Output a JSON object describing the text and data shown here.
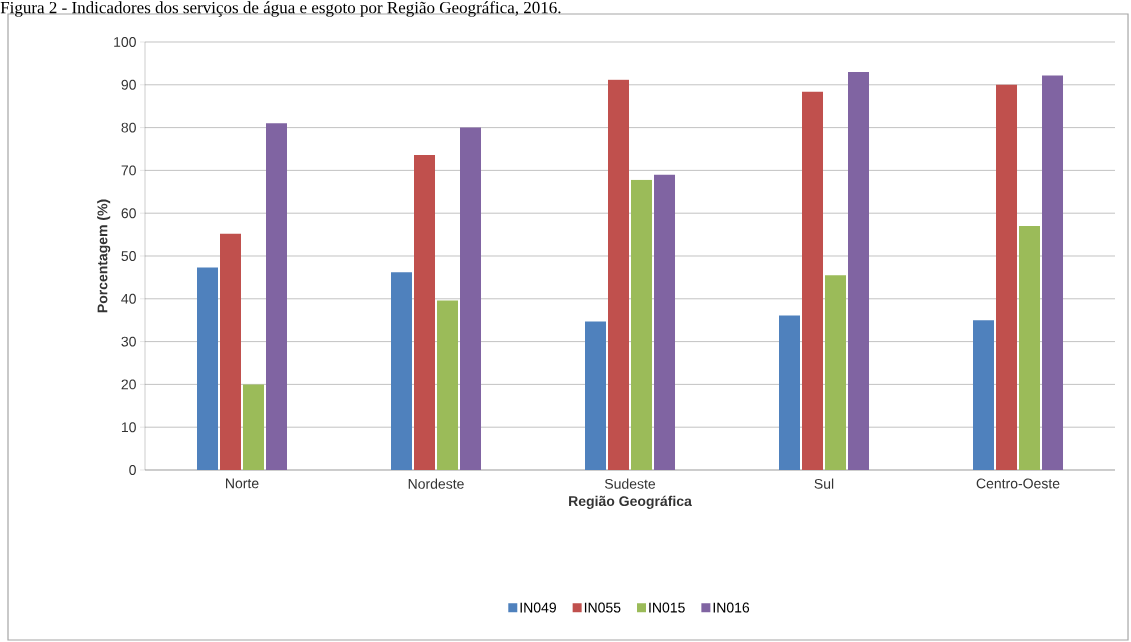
{
  "chart_data": {
    "type": "bar",
    "title": "Figura 2 - Indicadores dos serviços de água e esgoto por Região Geográfica, 2016.",
    "xlabel": "Região Geográfica",
    "ylabel": "Porcentagem (%)",
    "categories": [
      "Norte",
      "Nordeste",
      "Sudeste",
      "Sul",
      "Centro-Oeste"
    ],
    "series": [
      {
        "name": "IN049",
        "color": "#4f81bd",
        "values": [
          47.3,
          46.2,
          34.7,
          36.1,
          35.0
        ]
      },
      {
        "name": "IN055",
        "color": "#c0504d",
        "values": [
          55.2,
          73.6,
          91.2,
          88.4,
          90.0
        ]
      },
      {
        "name": "IN015",
        "color": "#9bbb59",
        "values": [
          20.0,
          39.6,
          67.8,
          45.5,
          57.0
        ]
      },
      {
        "name": "IN016",
        "color": "#8064a2",
        "values": [
          81.0,
          80.0,
          69.0,
          93.0,
          92.2
        ]
      }
    ],
    "ylim": [
      0,
      100
    ],
    "yticks": [
      0,
      10,
      20,
      30,
      40,
      50,
      60,
      70,
      80,
      90,
      100
    ],
    "grid": "y",
    "legend": "bottom"
  }
}
